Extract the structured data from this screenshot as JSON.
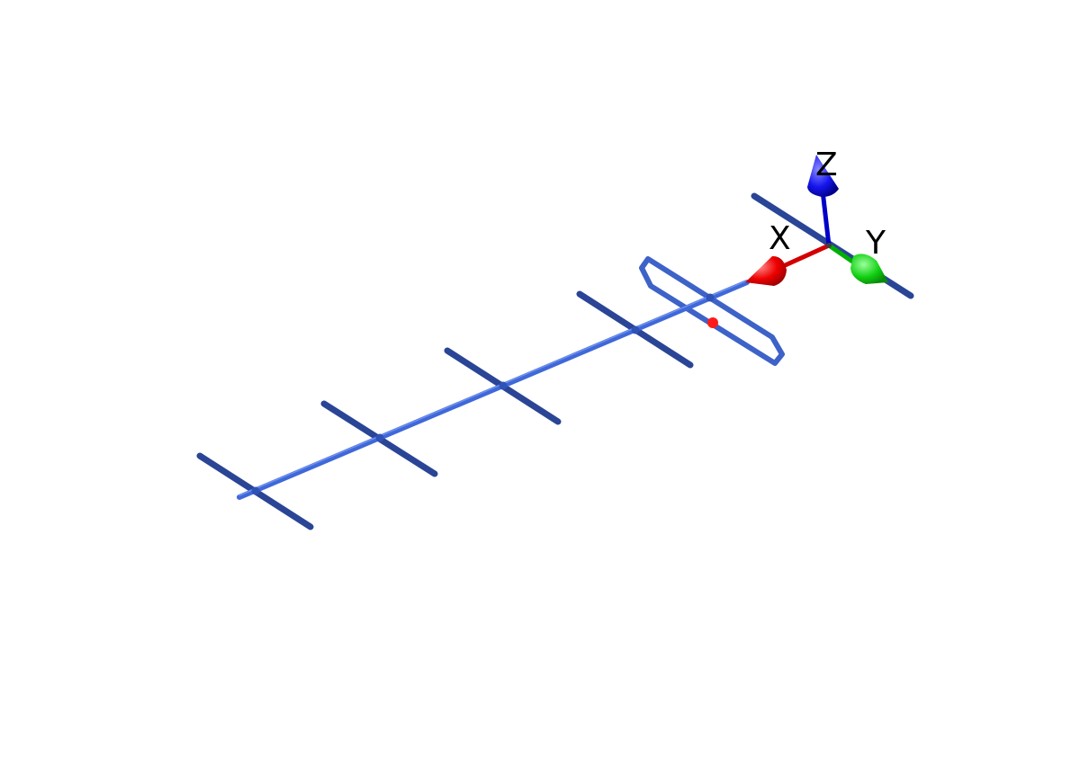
{
  "scene": {
    "background": "#ffffff",
    "elements": {
      "boom_color": "#3f68d8",
      "element_color": "#2a4596",
      "feed_color": "#3d62c8",
      "feed_point_color": "#ff1a1a",
      "director_count": 4,
      "has_reflector": true,
      "has_folded_dipole": true
    },
    "axes": {
      "x": {
        "label": "X",
        "color": "#ff0000"
      },
      "y": {
        "label": "Y",
        "color": "#00cc00"
      },
      "z": {
        "label": "Z",
        "color": "#0000ff"
      }
    }
  }
}
